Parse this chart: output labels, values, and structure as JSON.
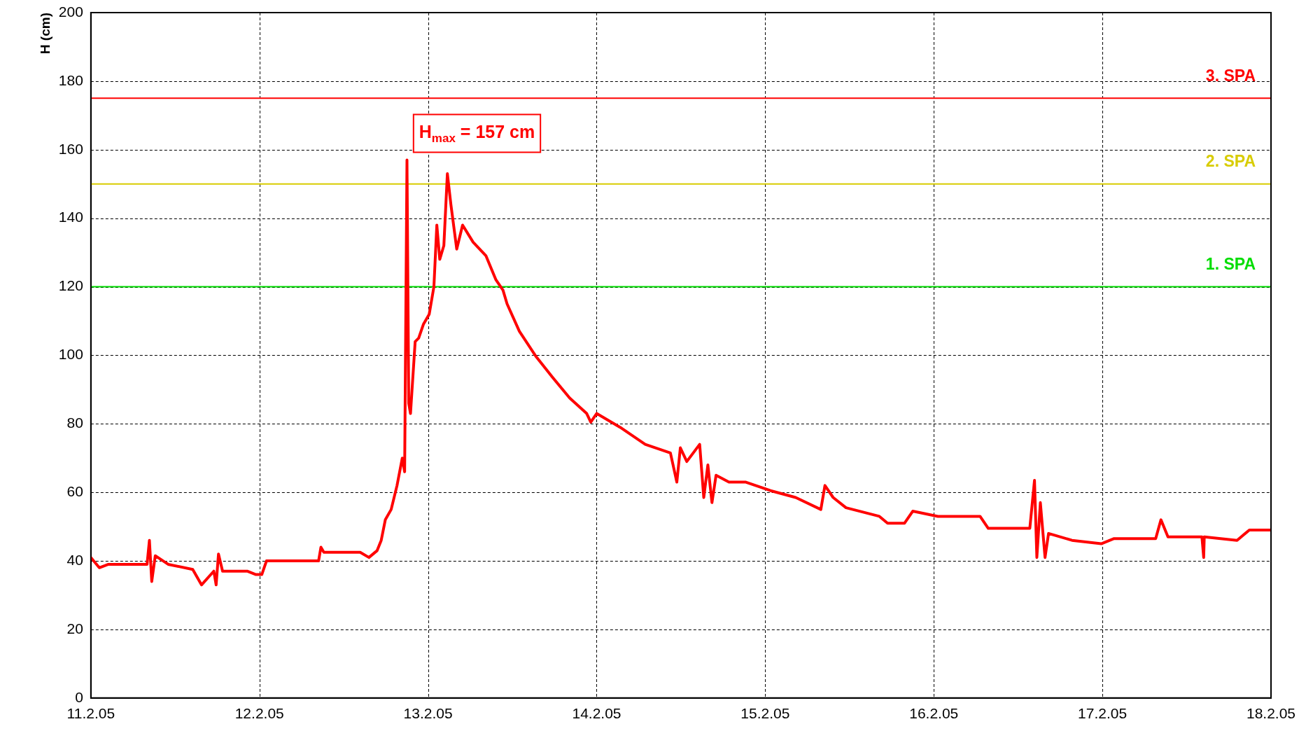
{
  "chart_data": {
    "type": "line",
    "ylabel": "H (cm)",
    "x": [
      "--02-11T00:00",
      "--02-11T01:12",
      "--02-11T02:30",
      "--02-11T08:00",
      "--02-11T08:20",
      "--02-11T08:40",
      "--02-11T09:10",
      "--02-11T11:00",
      "--02-11T14:30",
      "--02-11T15:45",
      "--02-11T17:30",
      "--02-11T17:50",
      "--02-11T18:10",
      "--02-11T18:45",
      "--02-11T22:15",
      "--02-11T23:30",
      "--02-12T00:20",
      "--02-12T01:00",
      "--02-12T08:25",
      "--02-12T08:45",
      "--02-12T09:10",
      "--02-12T14:20",
      "--02-12T15:35",
      "--02-12T16:45",
      "--02-12T17:20",
      "--02-12T17:55",
      "--02-12T18:45",
      "--02-12T19:35",
      "--02-12T20:20",
      "--02-12T20:40",
      "--02-12T21:00",
      "--02-12T21:15",
      "--02-12T21:30",
      "--02-12T22:10",
      "--02-12T22:40",
      "--02-12T23:20",
      "--02-13T00:10",
      "--02-13T00:50",
      "--02-13T01:15",
      "--02-13T01:40",
      "--02-13T02:15",
      "--02-13T02:45",
      "--02-13T03:15",
      "--02-13T04:05",
      "--02-13T04:55",
      "--02-13T06:25",
      "--02-13T08:15",
      "--02-13T09:40",
      "--02-13T10:40",
      "--02-13T11:15",
      "--02-13T13:00",
      "--02-13T15:25",
      "--02-13T17:45",
      "--02-13T20:10",
      "--02-13T22:35",
      "--02-13T23:10",
      "--02-14T00:00",
      "--02-14T03:20",
      "--02-14T06:55",
      "--02-14T10:30",
      "--02-14T11:25",
      "--02-14T11:55",
      "--02-14T12:50",
      "--02-14T14:40",
      "--02-14T15:15",
      "--02-14T15:50",
      "--02-14T16:25",
      "--02-14T17:00",
      "--02-14T18:50",
      "--02-14T21:10",
      "--02-15T00:45",
      "--02-15T04:20",
      "--02-15T07:55",
      "--02-15T08:30",
      "--02-15T09:40",
      "--02-15T11:30",
      "--02-15T16:15",
      "--02-15T17:25",
      "--02-15T19:50",
      "--02-15T21:00",
      "--02-16T00:35",
      "--02-16T06:35",
      "--02-16T07:45",
      "--02-16T10:10",
      "--02-16T13:40",
      "--02-16T14:20",
      "--02-16T14:40",
      "--02-16T15:10",
      "--02-16T15:50",
      "--02-16T16:20",
      "--02-16T19:40",
      "--02-16T23:50",
      "--02-17T01:40",
      "--02-17T07:35",
      "--02-17T08:20",
      "--02-17T09:20",
      "--02-17T14:10",
      "--02-17T14:25",
      "--02-17T14:30",
      "--02-17T19:10",
      "--02-17T20:55",
      "--02-18T00:00"
    ],
    "series": [
      {
        "color": "#ff0000",
        "values": [
          41,
          38,
          39,
          39,
          46,
          34,
          41.5,
          39,
          37.5,
          33,
          37,
          33,
          42,
          37,
          37,
          36,
          36,
          40,
          40,
          44,
          42.5,
          42.5,
          41,
          43,
          46,
          52,
          55,
          62,
          70,
          66,
          157,
          86,
          83,
          104,
          105,
          109,
          112,
          120,
          138,
          128,
          132,
          153,
          144,
          131,
          138,
          133,
          129,
          122,
          119,
          115,
          107,
          99.5,
          93.5,
          87.5,
          83,
          80.5,
          83,
          79,
          74,
          71.5,
          63,
          73,
          69,
          74,
          58.5,
          68,
          57,
          65,
          63,
          63,
          60.5,
          58.5,
          55,
          62,
          58.5,
          55.5,
          53,
          51,
          51,
          54.5,
          53,
          53,
          49.5,
          49.5,
          49.5,
          63.5,
          41,
          57,
          41,
          48,
          46,
          45,
          46.5,
          46.5,
          52,
          47,
          47,
          41,
          47,
          46,
          49,
          49
        ]
      }
    ],
    "xlim": [
      "--02-11",
      "--02-18"
    ],
    "xticks": [
      {
        "value": "--02-11",
        "label": "11.2.05"
      },
      {
        "value": "--02-12",
        "label": "12.2.05"
      },
      {
        "value": "--02-13",
        "label": "13.2.05"
      },
      {
        "value": "--02-14",
        "label": "14.2.05"
      },
      {
        "value": "--02-15",
        "label": "15.2.05"
      },
      {
        "value": "--02-16",
        "label": "16.2.05"
      },
      {
        "value": "--02-17",
        "label": "17.2.05"
      },
      {
        "value": "--02-18",
        "label": "18.2.05"
      }
    ],
    "ylim": [
      0,
      200
    ],
    "yticks": [
      0,
      20,
      40,
      60,
      80,
      100,
      120,
      140,
      160,
      180,
      200
    ],
    "grid": true,
    "legend": false,
    "marker": "none",
    "line_style": "solid",
    "ref_lines": [
      {
        "axis": "y",
        "value": 175,
        "label": "3. SPA",
        "color": "#ff0000"
      },
      {
        "axis": "y",
        "value": 150,
        "label": "2. SPA",
        "color": "#d8cc00"
      },
      {
        "axis": "y",
        "value": 120,
        "label": "1. SPA",
        "color": "#00dd00"
      }
    ],
    "annotations": [
      {
        "text": "H$_{max}$ = 157 cm",
        "x": "--02-12T21:00",
        "y": 157
      }
    ]
  }
}
